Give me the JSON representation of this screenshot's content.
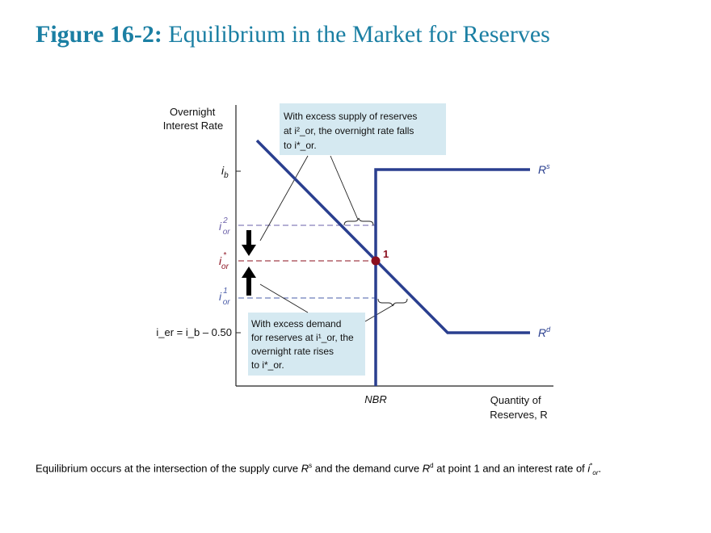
{
  "title": {
    "number": "Figure 16-2:",
    "text": "Equilibrium in the Market for Reserves"
  },
  "diagram": {
    "y_axis_label": [
      "Overnight",
      "Interest Rate"
    ],
    "x_axis_label": [
      "Quantity of",
      "Reserves, R"
    ],
    "x_tick": "NBR",
    "y_ticks": {
      "ib": {
        "base": "i",
        "sub": "b"
      },
      "i2": {
        "base": "i",
        "sup": "2",
        "sub": "or"
      },
      "istar": {
        "base": "i",
        "sup": "*",
        "sub": "or"
      },
      "i1": {
        "base": "i",
        "sup": "1",
        "sub": "or"
      },
      "ier": "i_er = i_b – 0.50"
    },
    "supply_label": {
      "base": "R",
      "sup": "s"
    },
    "demand_label": {
      "base": "R",
      "sup": "d"
    },
    "point_label": "1",
    "box_top": [
      "With excess supply of reserves",
      "at i²_or, the overnight rate falls",
      "to i*_or."
    ],
    "box_bottom": [
      "With excess demand",
      "for reserves at i¹_or, the",
      "overnight rate rises",
      "to i*_or."
    ],
    "colors": {
      "curve": "#2a3f8f",
      "equilibrium": "#8b0f1e",
      "box": "#d5e9f1",
      "i2_line": "#6a5fa8",
      "i1_line": "#4a5ca8"
    }
  },
  "caption": {
    "part1": "Equilibrium occurs at the intersection of the supply curve ",
    "rs": "R",
    "rs_sup": "s",
    "part2": " and the demand curve ",
    "rd": "R",
    "rd_sup": "d",
    "part3": " at point 1 and an interest rate of ",
    "i": "i",
    "i_sup": "*",
    "i_sub": "or",
    "end": "."
  }
}
